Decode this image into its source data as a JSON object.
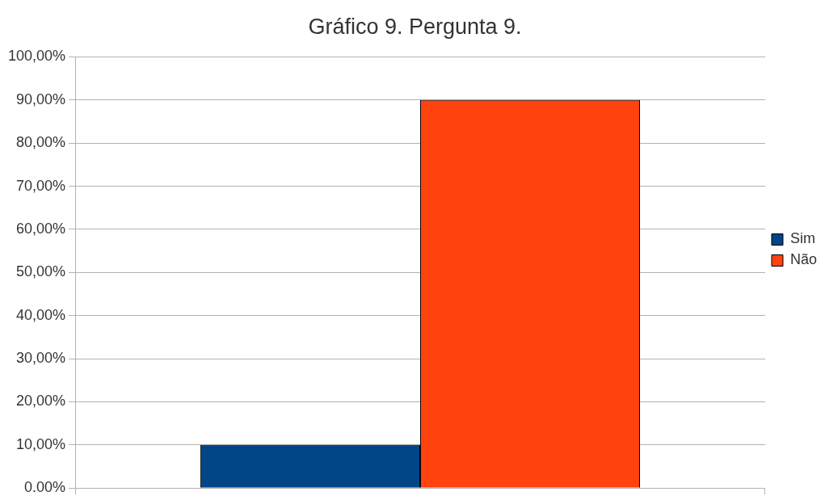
{
  "chart_data": {
    "type": "bar",
    "title": "Gráfico 9. Pergunta 9.",
    "categories": [
      null
    ],
    "series": [
      {
        "name": "Sim",
        "color": "#004586",
        "values": [
          10
        ]
      },
      {
        "name": "Não",
        "color": "#ff420e",
        "values": [
          90
        ]
      }
    ],
    "ylim": [
      0,
      100
    ],
    "yticks": [
      {
        "value": 0,
        "label": "0.00%"
      },
      {
        "value": 10,
        "label": "10,00%"
      },
      {
        "value": 20,
        "label": "20,00%"
      },
      {
        "value": 30,
        "label": "30,00%"
      },
      {
        "value": 40,
        "label": "40,00%"
      },
      {
        "value": 50,
        "label": "50,00%"
      },
      {
        "value": 60,
        "label": "60,00%"
      },
      {
        "value": 70,
        "label": "70,00%"
      },
      {
        "value": 80,
        "label": "80,00%"
      },
      {
        "value": 90,
        "label": "90,00%"
      },
      {
        "value": 100,
        "label": "100,00%"
      }
    ],
    "grid": "y",
    "legend": "right"
  }
}
